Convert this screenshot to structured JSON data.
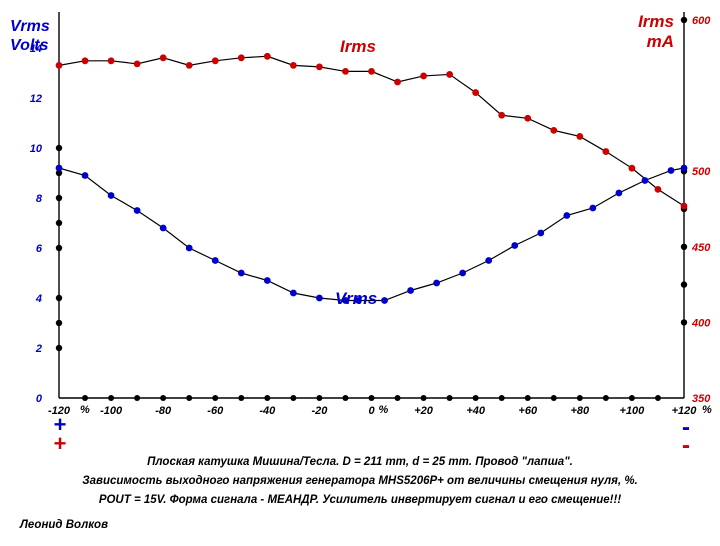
{
  "chart_data": {
    "type": "line",
    "left_axis": {
      "title_line1": "Vrms",
      "title_line2": "Volts",
      "ticks": [
        0,
        2,
        4,
        6,
        8,
        10,
        12,
        14
      ],
      "range": [
        0,
        15
      ]
    },
    "right_axis": {
      "title_line1": "Irms",
      "title_line2": "mA",
      "ticks": [
        350,
        400,
        450,
        500,
        600
      ],
      "range": [
        350,
        600
      ]
    },
    "x_axis": {
      "range": [
        -120,
        120
      ],
      "tick_labels": [
        {
          "x": -120,
          "text": "-120"
        },
        {
          "x": -100,
          "text": "-100"
        },
        {
          "x": -80,
          "text": "-80"
        },
        {
          "x": -60,
          "text": "-60"
        },
        {
          "x": -40,
          "text": "-40"
        },
        {
          "x": -20,
          "text": "-20"
        },
        {
          "x": 0,
          "text": "0"
        },
        {
          "x": 20,
          "text": "+20"
        },
        {
          "x": 40,
          "text": "+40"
        },
        {
          "x": 60,
          "text": "+60"
        },
        {
          "x": 80,
          "text": "+80"
        },
        {
          "x": 100,
          "text": "+100"
        },
        {
          "x": 120,
          "text": "+120"
        }
      ],
      "unit": "%"
    },
    "series": [
      {
        "name": "Irms",
        "axis": "right",
        "color": "#cc0000",
        "line_color": "#000000",
        "x": [
          -120,
          -110,
          -100,
          -90,
          -80,
          -70,
          -60,
          -50,
          -40,
          -30,
          -20,
          -10,
          0,
          10,
          20,
          30,
          40,
          50,
          60,
          70,
          80,
          90,
          100,
          110,
          120
        ],
        "values": [
          570,
          573,
          573,
          571,
          575,
          570,
          573,
          575,
          576,
          570,
          569,
          566,
          566,
          559,
          563,
          564,
          552,
          537,
          535,
          527,
          523,
          513,
          502,
          488,
          477
        ]
      },
      {
        "name": "Vrms",
        "axis": "left",
        "color": "#0000cc",
        "line_color": "#000000",
        "x": [
          -120,
          -110,
          -100,
          -90,
          -80,
          -70,
          -60,
          -50,
          -40,
          -30,
          -20,
          -10,
          -5,
          5,
          15,
          25,
          35,
          45,
          55,
          65,
          75,
          85,
          95,
          105,
          115,
          120
        ],
        "values": [
          9.2,
          8.9,
          8.1,
          7.5,
          6.8,
          6.0,
          5.5,
          5.0,
          4.7,
          4.2,
          4.0,
          3.9,
          3.9,
          3.9,
          4.3,
          4.6,
          5.0,
          5.5,
          6.1,
          6.6,
          7.3,
          7.6,
          8.2,
          8.7,
          9.1,
          9.2
        ]
      }
    ],
    "annotations": [
      "Irms",
      "Vrms"
    ],
    "polarity_marks": {
      "left_top": "+",
      "left_bottom": "+",
      "right_top": "-",
      "right_bottom": "-"
    }
  },
  "captions": {
    "line1": "Плоская катушка Мишина/Тесла. D = 211 mm, d = 25 mm. Провод \"лапша\".",
    "line2": "Зависимость выходного напряжения генератора MHS5206P+  от величины смещения нуля, %.",
    "line3": "POUT = 15V. Форма сигнала - МЕАНДР. Усилитель инвертирует сигнал и его смещение!!!"
  },
  "author": "Леонид Волков"
}
